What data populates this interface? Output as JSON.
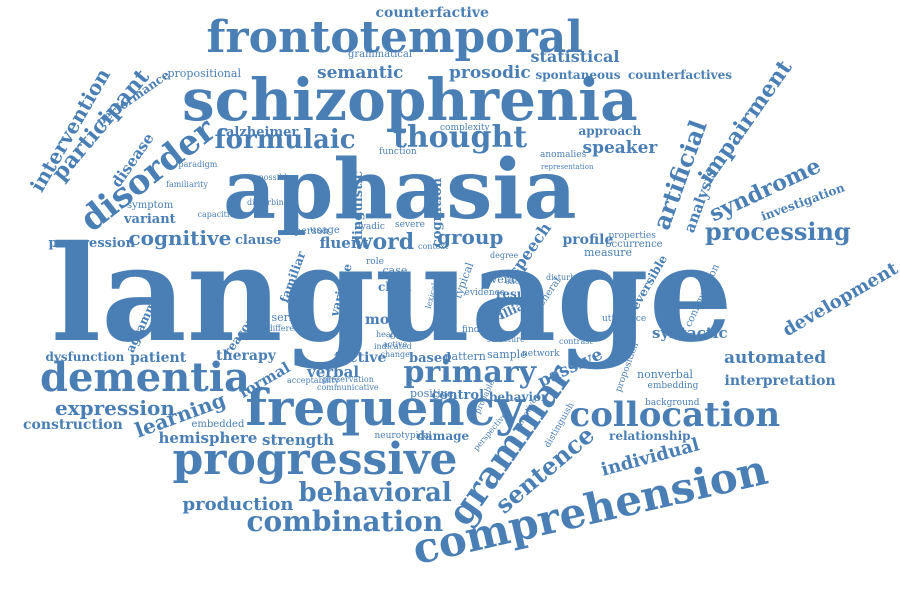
{
  "word_color": "#4a7fb5",
  "words": [
    {
      "text": "language"
    },
    {
      "text": "aphasia"
    },
    {
      "text": "schizophrenia"
    },
    {
      "text": "frontotemporal"
    },
    {
      "text": "frequency"
    },
    {
      "text": "progressive"
    },
    {
      "text": "comprehension"
    },
    {
      "text": "dementia"
    },
    {
      "text": "collocation"
    },
    {
      "text": "grammar"
    },
    {
      "text": "primary"
    },
    {
      "text": "disorder"
    },
    {
      "text": "thought"
    },
    {
      "text": "formulaic"
    },
    {
      "text": "combination"
    },
    {
      "text": "behavioral"
    },
    {
      "text": "sentence"
    },
    {
      "text": "processing"
    },
    {
      "text": "syndrome"
    },
    {
      "text": "impairment"
    },
    {
      "text": "artificial"
    },
    {
      "text": "participant"
    },
    {
      "text": "intervention"
    },
    {
      "text": "learning"
    },
    {
      "text": "expression"
    },
    {
      "text": "cognitive"
    },
    {
      "text": "word"
    },
    {
      "text": "group"
    },
    {
      "text": "semantic"
    },
    {
      "text": "prosodic"
    },
    {
      "text": "statistical"
    },
    {
      "text": "counterfactive"
    },
    {
      "text": "counterfactives"
    },
    {
      "text": "spontaneous"
    },
    {
      "text": "grammatical"
    },
    {
      "text": "propositional"
    },
    {
      "text": "performance"
    },
    {
      "text": "disease"
    },
    {
      "text": "alzheimer"
    },
    {
      "text": "speaker"
    },
    {
      "text": "analysis"
    },
    {
      "text": "approach"
    },
    {
      "text": "complexity"
    },
    {
      "text": "development"
    },
    {
      "text": "investigation"
    },
    {
      "text": "automated"
    },
    {
      "text": "interpretation"
    },
    {
      "text": "individual"
    },
    {
      "text": "relationship"
    },
    {
      "text": "production"
    },
    {
      "text": "construction"
    },
    {
      "text": "hemisphere"
    },
    {
      "text": "strength"
    },
    {
      "text": "therapy"
    },
    {
      "text": "patient"
    },
    {
      "text": "dysfunction"
    },
    {
      "text": "progression"
    },
    {
      "text": "variant"
    },
    {
      "text": "symptom"
    },
    {
      "text": "clause"
    },
    {
      "text": "fluent"
    },
    {
      "text": "speech"
    },
    {
      "text": "profile"
    },
    {
      "text": "measure"
    },
    {
      "text": "syntactic"
    },
    {
      "text": "passive"
    },
    {
      "text": "verbal"
    },
    {
      "text": "factive"
    },
    {
      "text": "formal"
    },
    {
      "text": "control"
    },
    {
      "text": "damage"
    },
    {
      "text": "embedded"
    },
    {
      "text": "series"
    },
    {
      "text": "agrammatic"
    },
    {
      "text": "linguistic"
    },
    {
      "text": "cognition"
    },
    {
      "text": "function"
    },
    {
      "text": "person"
    },
    {
      "text": "usage"
    },
    {
      "text": "case"
    },
    {
      "text": "child"
    },
    {
      "text": "variable"
    },
    {
      "text": "more"
    },
    {
      "text": "based"
    },
    {
      "text": "pattern"
    },
    {
      "text": "sample"
    },
    {
      "text": "result"
    },
    {
      "text": "event"
    },
    {
      "text": "typical"
    },
    {
      "text": "behavior"
    },
    {
      "text": "positive"
    },
    {
      "text": "nonverbal"
    },
    {
      "text": "embedding"
    },
    {
      "text": "background"
    },
    {
      "text": "utterance"
    },
    {
      "text": "configuration"
    },
    {
      "text": "proposition"
    },
    {
      "text": "reversible"
    },
    {
      "text": "occurrence"
    },
    {
      "text": "properties"
    },
    {
      "text": "anomalies"
    },
    {
      "text": "order"
    },
    {
      "text": "severe"
    },
    {
      "text": "familiarity"
    },
    {
      "text": "reasoning"
    },
    {
      "text": "familiar"
    },
    {
      "text": "difference"
    },
    {
      "text": "neurotypical"
    },
    {
      "text": "acceptability"
    },
    {
      "text": "william"
    },
    {
      "text": "general"
    },
    {
      "text": "finding"
    },
    {
      "text": "cue"
    },
    {
      "text": "role"
    },
    {
      "text": "distinguish"
    },
    {
      "text": "perspective"
    },
    {
      "text": "preservation"
    },
    {
      "text": "active"
    },
    {
      "text": "change"
    },
    {
      "text": "healthy"
    },
    {
      "text": "network"
    },
    {
      "text": "lexical"
    },
    {
      "text": "evidence"
    },
    {
      "text": "degree"
    },
    {
      "text": "bvftd"
    },
    {
      "text": "dyadic"
    },
    {
      "text": "capacities"
    },
    {
      "text": "paradigm"
    },
    {
      "text": "disturbance"
    },
    {
      "text": "communicative"
    },
    {
      "text": "context"
    },
    {
      "text": "possible"
    },
    {
      "text": "disturbing"
    },
    {
      "text": "representation"
    },
    {
      "text": "probable"
    },
    {
      "text": "contrast"
    },
    {
      "text": "indicated"
    },
    {
      "text": "elicited"
    },
    {
      "text": "narrative"
    },
    {
      "text": "structure"
    }
  ]
}
